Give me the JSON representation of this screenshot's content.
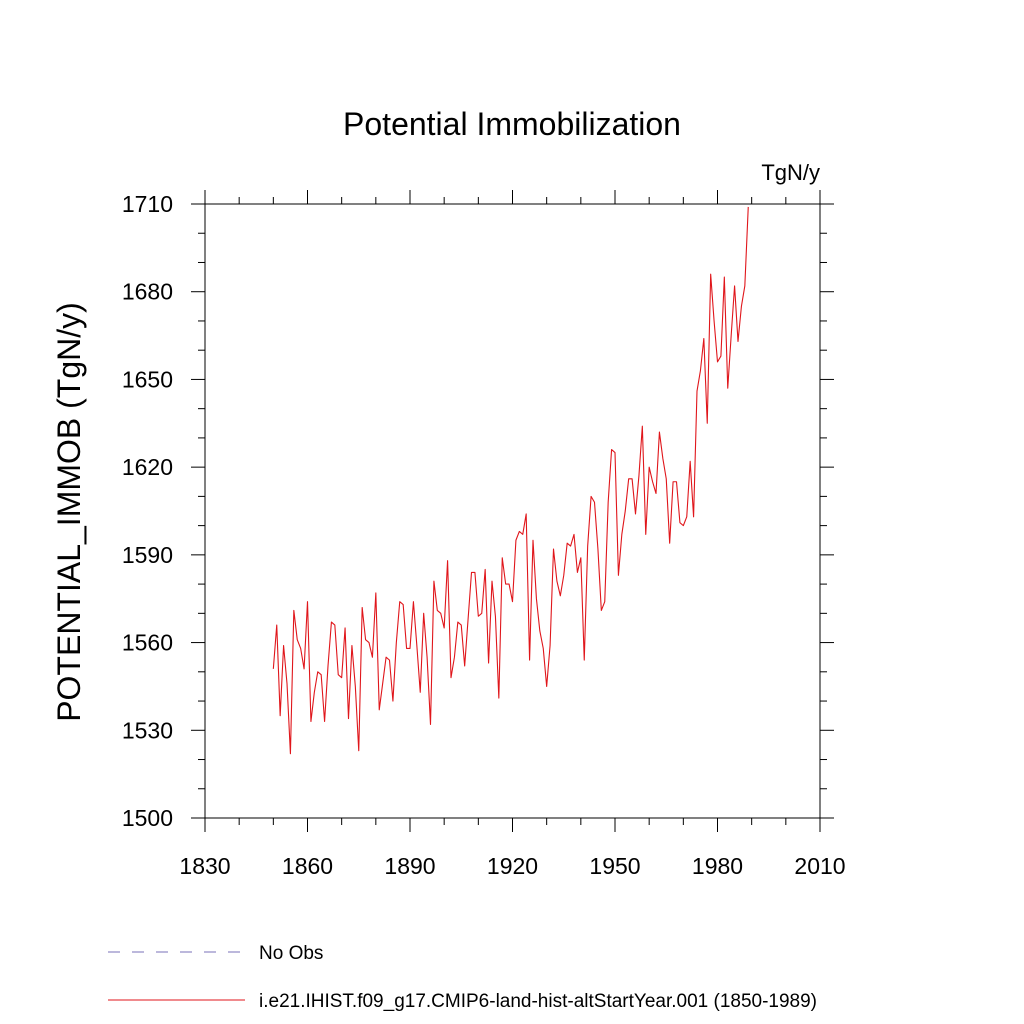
{
  "chart_data": {
    "type": "line",
    "title": "Potential Immobilization",
    "units_label": "TgN/y",
    "ylabel": "POTENTIAL_IMMOB  (TgN/y)",
    "xlabel": "",
    "xlim": [
      1830,
      2010
    ],
    "ylim": [
      1500,
      1710
    ],
    "x_ticks": [
      1830,
      1860,
      1890,
      1920,
      1950,
      1980,
      2010
    ],
    "y_ticks": [
      1500,
      1530,
      1560,
      1590,
      1620,
      1650,
      1680,
      1710
    ],
    "grid": false,
    "legend_placement": "bottom",
    "legend": [
      {
        "label": "No Obs",
        "style": "dashed",
        "color": "#7a70b8"
      },
      {
        "label": "i.e21.IHIST.f09_g17.CMIP6-land-hist-altStartYear.001 (1850-1989)",
        "style": "solid",
        "color": "#e0161b"
      }
    ],
    "series": [
      {
        "name": "i.e21.IHIST.f09_g17.CMIP6-land-hist-altStartYear.001 (1850-1989)",
        "color": "#e0161b",
        "x": [
          1850,
          1851,
          1852,
          1853,
          1854,
          1855,
          1856,
          1857,
          1858,
          1859,
          1860,
          1861,
          1862,
          1863,
          1864,
          1865,
          1866,
          1867,
          1868,
          1869,
          1870,
          1871,
          1872,
          1873,
          1874,
          1875,
          1876,
          1877,
          1878,
          1879,
          1880,
          1881,
          1882,
          1883,
          1884,
          1885,
          1886,
          1887,
          1888,
          1889,
          1890,
          1891,
          1892,
          1893,
          1894,
          1895,
          1896,
          1897,
          1898,
          1899,
          1900,
          1901,
          1902,
          1903,
          1904,
          1905,
          1906,
          1907,
          1908,
          1909,
          1910,
          1911,
          1912,
          1913,
          1914,
          1915,
          1916,
          1917,
          1918,
          1919,
          1920,
          1921,
          1922,
          1923,
          1924,
          1925,
          1926,
          1927,
          1928,
          1929,
          1930,
          1931,
          1932,
          1933,
          1934,
          1935,
          1936,
          1937,
          1938,
          1939,
          1940,
          1941,
          1942,
          1943,
          1944,
          1945,
          1946,
          1947,
          1948,
          1949,
          1950,
          1951,
          1952,
          1953,
          1954,
          1955,
          1956,
          1957,
          1958,
          1959,
          1960,
          1961,
          1962,
          1963,
          1964,
          1965,
          1966,
          1967,
          1968,
          1969,
          1970,
          1971,
          1972,
          1973,
          1974,
          1975,
          1976,
          1977,
          1978,
          1979,
          1980,
          1981,
          1982,
          1983,
          1984,
          1985,
          1986,
          1987,
          1988,
          1989
        ],
        "values": [
          1551,
          1566,
          1535,
          1559,
          1546,
          1522,
          1571,
          1561,
          1558,
          1551,
          1574,
          1533,
          1543,
          1550,
          1549,
          1533,
          1552,
          1567,
          1566,
          1549,
          1548,
          1565,
          1534,
          1559,
          1545,
          1523,
          1572,
          1561,
          1560,
          1555,
          1577,
          1537,
          1546,
          1555,
          1554,
          1540,
          1560,
          1574,
          1573,
          1558,
          1558,
          1574,
          1559,
          1543,
          1570,
          1555,
          1532,
          1581,
          1571,
          1570,
          1565,
          1588,
          1548,
          1555,
          1567,
          1566,
          1552,
          1568,
          1584,
          1584,
          1569,
          1570,
          1585,
          1553,
          1581,
          1569,
          1541,
          1589,
          1580,
          1580,
          1574,
          1595,
          1598,
          1597,
          1604,
          1554,
          1595,
          1575,
          1564,
          1558,
          1545,
          1559,
          1592,
          1581,
          1576,
          1583,
          1594,
          1593,
          1597,
          1584,
          1589,
          1554,
          1593,
          1610,
          1608,
          1592,
          1571,
          1574,
          1608,
          1626,
          1625,
          1583,
          1597,
          1605,
          1616,
          1616,
          1604,
          1617,
          1634,
          1597,
          1620,
          1615,
          1611,
          1632,
          1623,
          1616,
          1594,
          1615,
          1615,
          1601,
          1600,
          1603,
          1622,
          1603,
          1646,
          1653,
          1664,
          1635,
          1686,
          1670,
          1656,
          1658,
          1685,
          1647,
          1665,
          1682,
          1663,
          1675,
          1682,
          1709
        ]
      }
    ]
  }
}
